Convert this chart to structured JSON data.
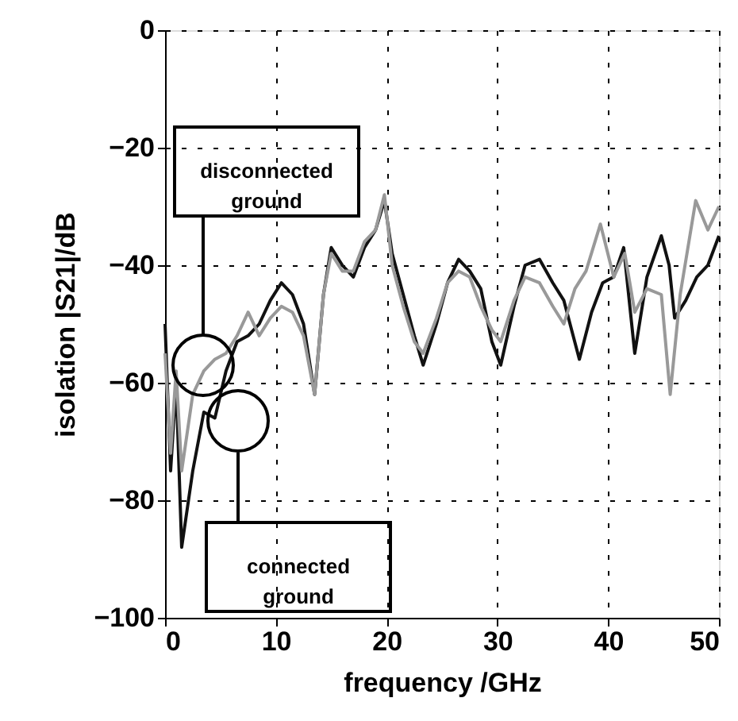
{
  "chart_data": {
    "type": "line",
    "xlabel": "frequency /GHz",
    "ylabel": "isolation |S21|/dB",
    "xlim": [
      0,
      50
    ],
    "xticks": [
      0,
      10,
      20,
      30,
      40,
      50
    ],
    "ylim": [
      -100,
      0
    ],
    "yticks": [
      -100,
      -80,
      -60,
      -40,
      -20,
      0
    ],
    "grid": true,
    "marker": "none",
    "line_style": "solid",
    "series": [
      {
        "color": "#111111",
        "x": [
          0,
          0.5,
          1,
          1.5,
          2.5,
          3.5,
          4.5,
          5.5,
          6.5,
          7.5,
          8.5,
          9.5,
          10.5,
          11.5,
          12.5,
          13.5,
          14.3,
          15,
          16,
          17,
          18,
          19,
          19.8,
          20.5,
          21.5,
          22.5,
          23.3,
          24.5,
          25.5,
          26.5,
          27.5,
          28.5,
          29.5,
          30.3,
          31.5,
          32.5,
          33.8,
          35,
          36,
          37.4,
          38.5,
          39.5,
          40.5,
          41.4,
          42.4,
          43.5,
          44.8,
          45.5,
          46,
          47,
          48,
          49,
          50
        ],
        "values": [
          -50,
          -75,
          -60,
          -88,
          -75,
          -65,
          -66,
          -58,
          -53,
          -52,
          -50,
          -46,
          -43,
          -45,
          -50,
          -62,
          -45,
          -37,
          -40,
          -42,
          -37,
          -34,
          -29,
          -38,
          -45,
          -52,
          -57,
          -50,
          -43,
          -39,
          -41,
          -44,
          -53,
          -57,
          -47,
          -40,
          -39,
          -43,
          -46,
          -56,
          -48,
          -43,
          -42,
          -37,
          -55,
          -42,
          -35,
          -40,
          -49,
          -46,
          -42,
          -40,
          -35
        ]
      },
      {
        "color": "#999999",
        "x": [
          0,
          0.5,
          1,
          1.5,
          2.5,
          3.5,
          4.5,
          5.5,
          6.5,
          7.5,
          8.5,
          9.5,
          10.5,
          11.5,
          12.5,
          13.5,
          14.3,
          15,
          16,
          17,
          18,
          19,
          19.8,
          20.5,
          21.5,
          22.5,
          23.3,
          24.5,
          25.5,
          26.5,
          27.5,
          28.5,
          29.5,
          30.3,
          31.5,
          32.5,
          33.8,
          35,
          36,
          37,
          38,
          39.3,
          40.5,
          41.5,
          42.4,
          43.5,
          44.8,
          45.6,
          46.5,
          47.9,
          49,
          50
        ],
        "values": [
          -55,
          -72,
          -58,
          -75,
          -62,
          -58,
          -56,
          -55,
          -52,
          -48,
          -52,
          -49,
          -47,
          -48,
          -52,
          -62,
          -45,
          -38,
          -41,
          -41,
          -36,
          -34,
          -28,
          -40,
          -47,
          -53,
          -55,
          -49,
          -43,
          -41,
          -42,
          -47,
          -51,
          -53,
          -46,
          -42,
          -43,
          -47,
          -50,
          -44,
          -41,
          -33,
          -42,
          -38,
          -48,
          -44,
          -45,
          -62,
          -45,
          -29,
          -34,
          -30
        ]
      }
    ],
    "annotations": [
      "disconnected ground",
      "connected ground"
    ]
  }
}
